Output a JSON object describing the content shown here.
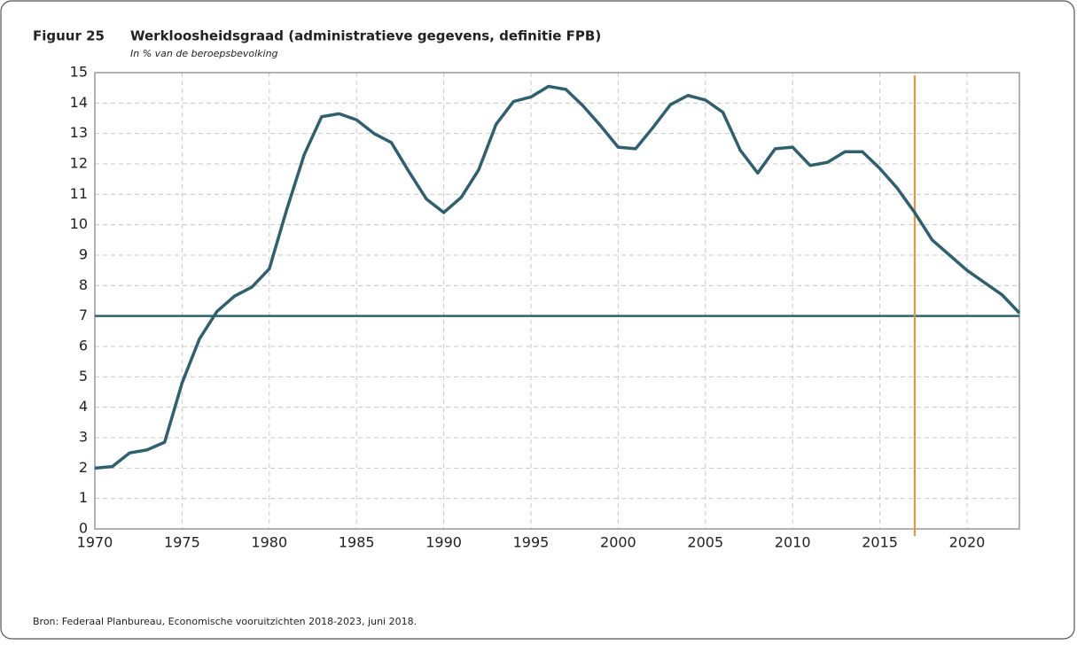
{
  "chart_data": {
    "type": "line",
    "figure_label": "Figuur 25",
    "title": "Werkloosheidsgraad (administratieve gegevens, definitie FPB)",
    "subtitle": "In % van de beroepsbevolking",
    "source": "Bron: Federaal Planbureau, Economische vooruitzichten 2018-2023, juni 2018.",
    "x": [
      1970,
      1971,
      1972,
      1973,
      1974,
      1975,
      1976,
      1977,
      1978,
      1979,
      1980,
      1981,
      1982,
      1983,
      1984,
      1985,
      1986,
      1987,
      1988,
      1989,
      1990,
      1991,
      1992,
      1993,
      1994,
      1995,
      1996,
      1997,
      1998,
      1999,
      2000,
      2001,
      2002,
      2003,
      2004,
      2005,
      2006,
      2007,
      2008,
      2009,
      2010,
      2011,
      2012,
      2013,
      2014,
      2015,
      2016,
      2017,
      2018,
      2019,
      2020,
      2021,
      2022,
      2023
    ],
    "series": [
      {
        "color": "#2f6070",
        "values": [
          2.0,
          2.05,
          2.5,
          2.6,
          2.85,
          4.8,
          6.25,
          7.15,
          7.65,
          7.95,
          8.55,
          10.5,
          12.3,
          13.55,
          13.65,
          13.45,
          13.0,
          12.7,
          11.75,
          10.85,
          10.4,
          10.9,
          11.8,
          13.3,
          14.05,
          14.2,
          14.55,
          14.45,
          13.9,
          13.25,
          12.55,
          12.5,
          13.2,
          13.95,
          14.25,
          14.1,
          13.7,
          12.45,
          11.7,
          12.5,
          12.55,
          11.95,
          12.05,
          12.4,
          12.4,
          11.85,
          11.2,
          10.4,
          9.5,
          9.0,
          8.5,
          8.1,
          7.7,
          7.1
        ]
      }
    ],
    "hline": {
      "value": 7,
      "color": "#2f6070"
    },
    "vline": {
      "value": 2017,
      "color": "#f0902a"
    },
    "xlim": [
      1970,
      2023
    ],
    "xticks": [
      1970,
      1975,
      1980,
      1985,
      1990,
      1995,
      2000,
      2005,
      2010,
      2015,
      2020
    ],
    "ylim": [
      0,
      15
    ],
    "yticks": [
      0,
      1,
      2,
      3,
      4,
      5,
      6,
      7,
      8,
      9,
      10,
      11,
      12,
      13,
      14,
      15
    ],
    "grid": true
  }
}
